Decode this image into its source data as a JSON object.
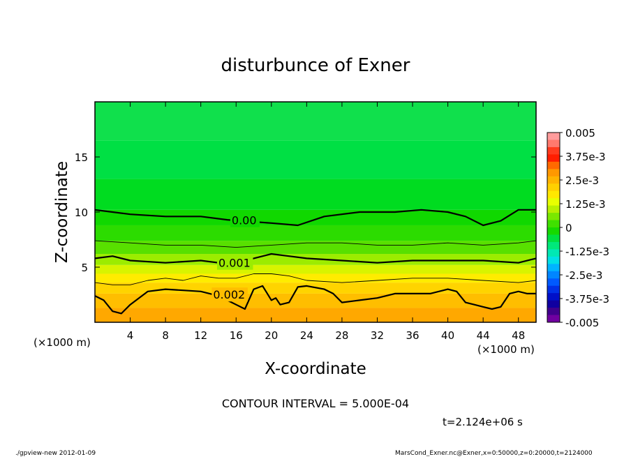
{
  "chart_data": {
    "type": "heatmap",
    "title": "disturbunce of Exner",
    "xlabel": "X-coordinate",
    "ylabel": "Z-coordinate",
    "x_unit_left": "(×1000 m)",
    "x_unit_right": "(×1000 m)",
    "xlim": [
      0,
      50
    ],
    "ylim": [
      0,
      20
    ],
    "x_ticks": [
      4,
      8,
      12,
      16,
      20,
      24,
      28,
      32,
      36,
      40,
      44,
      48
    ],
    "y_ticks": [
      5,
      10,
      15
    ],
    "contour_labels": [
      "0.00",
      "0.001",
      "0.002"
    ],
    "contour_interval_text": "CONTOUR INTERVAL = 5.000E-04",
    "time_text": "t=2.124e+06 s",
    "colorbar": {
      "ticks": [
        "0.005",
        "3.75e-3",
        "2.5e-3",
        "1.25e-3",
        "0",
        "-1.25e-3",
        "-2.5e-3",
        "-3.75e-3",
        "-0.005"
      ],
      "colors": [
        "#ff9c9c",
        "#ff7a6e",
        "#ff3b1e",
        "#ff1e00",
        "#ff6a00",
        "#ff9800",
        "#ffb400",
        "#ffd000",
        "#ffe800",
        "#e8ff00",
        "#b8f000",
        "#7ae800",
        "#3fe000",
        "#16d900",
        "#00e040",
        "#00e87a",
        "#00e8b4",
        "#00e0e6",
        "#00b4ff",
        "#0086ff",
        "#005aff",
        "#0030e6",
        "#0010c8",
        "#1000a0",
        "#40008c",
        "#7000a0"
      ]
    },
    "bands": [
      {
        "color": "#ffa800",
        "from": 0,
        "to": 1.3
      },
      {
        "color": "#ffbe00",
        "from": 1.3,
        "to": 2.6
      },
      {
        "color": "#ffd400",
        "from": 2.6,
        "to": 3.6
      },
      {
        "color": "#ffec00",
        "from": 3.6,
        "to": 4.4
      },
      {
        "color": "#d8f400",
        "from": 4.4,
        "to": 5.2
      },
      {
        "color": "#9cec00",
        "from": 5.2,
        "to": 6.2
      },
      {
        "color": "#58e000",
        "from": 6.2,
        "to": 7.4
      },
      {
        "color": "#2cdc00",
        "from": 7.4,
        "to": 8.8
      },
      {
        "color": "#10d800",
        "from": 8.8,
        "to": 10.2
      },
      {
        "color": "#00dc20",
        "from": 10.2,
        "to": 13.0
      },
      {
        "color": "#00e044",
        "from": 13.0,
        "to": 16.5
      },
      {
        "color": "#10e04c",
        "from": 16.5,
        "to": 20
      }
    ],
    "contours": [
      {
        "label": "0.00",
        "label_x": 15.5,
        "thick": true,
        "x": [
          0,
          2,
          4,
          8,
          12,
          15,
          20,
          23,
          26,
          30,
          34,
          37,
          40,
          42,
          44,
          46,
          48,
          50
        ],
        "z": [
          10.2,
          10.0,
          9.8,
          9.6,
          9.6,
          9.3,
          9.0,
          8.8,
          9.6,
          10.0,
          10.0,
          10.2,
          10.0,
          9.6,
          8.8,
          9.2,
          10.2,
          10.2
        ]
      },
      {
        "label": "",
        "thick": false,
        "x": [
          0,
          4,
          8,
          12,
          16,
          20,
          24,
          28,
          32,
          36,
          40,
          44,
          48,
          50
        ],
        "z": [
          7.4,
          7.2,
          7.0,
          7.0,
          6.8,
          7.0,
          7.2,
          7.2,
          7.0,
          7.0,
          7.2,
          7.0,
          7.2,
          7.4
        ]
      },
      {
        "label": "0.001",
        "label_x": 14,
        "thick": true,
        "x": [
          0,
          2,
          4,
          8,
          12,
          14,
          16,
          18,
          20,
          22,
          24,
          28,
          32,
          36,
          40,
          44,
          48,
          50
        ],
        "z": [
          5.8,
          6.0,
          5.6,
          5.4,
          5.6,
          5.4,
          5.4,
          5.8,
          6.2,
          6.0,
          5.8,
          5.6,
          5.4,
          5.6,
          5.6,
          5.6,
          5.4,
          5.8
        ]
      },
      {
        "label": "",
        "thick": false,
        "x": [
          0,
          2,
          4,
          6,
          8,
          10,
          12,
          14,
          16,
          18,
          20,
          22,
          24,
          28,
          32,
          36,
          40,
          44,
          48,
          50
        ],
        "z": [
          3.6,
          3.4,
          3.4,
          3.8,
          4.0,
          3.8,
          4.2,
          4.0,
          4.0,
          4.4,
          4.4,
          4.2,
          3.8,
          3.6,
          3.8,
          4.0,
          4.0,
          3.8,
          3.6,
          3.8
        ]
      },
      {
        "label": "0.002",
        "label_x": 13.4,
        "thick": true,
        "x": [
          0,
          1,
          2,
          3,
          4,
          5,
          6,
          8,
          10,
          12,
          13,
          14,
          15,
          16,
          17,
          18,
          19,
          20,
          20.5,
          21,
          22,
          23,
          24,
          26,
          27,
          28,
          30,
          32,
          34,
          36,
          38,
          40,
          41,
          42,
          43,
          44,
          45,
          46,
          47,
          48,
          49,
          50
        ],
        "z": [
          2.4,
          2.0,
          1.0,
          0.8,
          1.6,
          2.2,
          2.8,
          3.0,
          2.9,
          2.8,
          2.6,
          2.4,
          2.0,
          1.6,
          1.2,
          3.0,
          3.3,
          2.0,
          2.2,
          1.6,
          1.8,
          3.2,
          3.3,
          3.0,
          2.6,
          1.8,
          2.0,
          2.2,
          2.6,
          2.6,
          2.6,
          3.0,
          2.8,
          1.8,
          1.6,
          1.4,
          1.2,
          1.4,
          2.6,
          2.8,
          2.6,
          2.6
        ]
      }
    ],
    "grid": false,
    "legend": "right"
  },
  "footer": {
    "left": "./gpview-new   2012-01-09",
    "right": "MarsCond_Exner.nc@Exner,x=0:50000,z=0:20000,t=2124000"
  }
}
